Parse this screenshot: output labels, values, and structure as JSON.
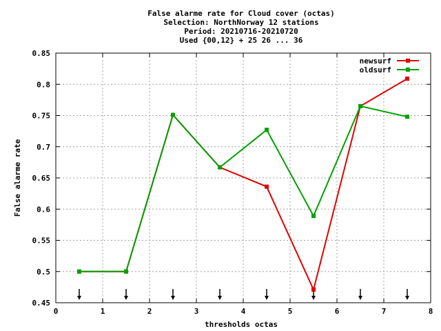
{
  "chart_data": {
    "type": "line",
    "title_lines": [
      "False alarme rate  for Cloud cover (octas)",
      "Selection: NorthNorway     12 stations",
      "Period: 20210716-20210720",
      "Used {00,12} + 25 26 ... 36"
    ],
    "xlabel": "thresholds octas",
    "ylabel": "False alarme rate",
    "xlim": [
      0,
      8
    ],
    "ylim": [
      0.45,
      0.85
    ],
    "x_ticks": [
      "0",
      "1",
      "2",
      "3",
      "4",
      "5",
      "6",
      "7",
      "8"
    ],
    "y_ticks": [
      "0.45",
      "0.5",
      "0.55",
      "0.6",
      "0.65",
      "0.7",
      "0.75",
      "0.8",
      "0.85"
    ],
    "grid": true,
    "legend_position": "top-right",
    "arrow_markers_x": [
      0.5,
      1.5,
      2.5,
      3.5,
      4.5,
      5.5,
      6.5,
      7.5
    ],
    "series": [
      {
        "name": "newsurf",
        "color": "#e00000",
        "x": [
          0.5,
          1.5,
          2.5,
          3.5,
          4.5,
          5.5,
          6.5,
          7.5
        ],
        "y": [
          0.5,
          0.5,
          0.751,
          0.667,
          0.636,
          0.471,
          0.765,
          0.809
        ]
      },
      {
        "name": "oldsurf",
        "color": "#00a000",
        "x": [
          0.5,
          1.5,
          2.5,
          3.5,
          4.5,
          5.5,
          6.5,
          7.5
        ],
        "y": [
          0.5,
          0.5,
          0.751,
          0.667,
          0.727,
          0.589,
          0.765,
          0.748
        ]
      }
    ]
  }
}
